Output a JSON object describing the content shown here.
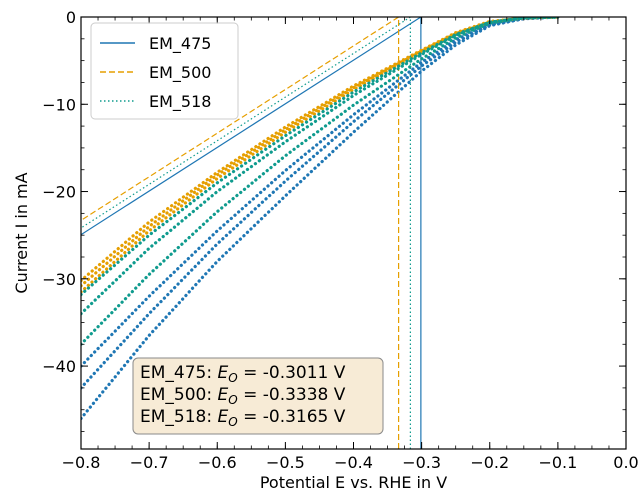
{
  "chart_data": {
    "type": "line",
    "title": "",
    "xlabel": "Potential E vs. RHE in V",
    "ylabel": "Current I in mA",
    "xlim": [
      -0.8,
      0.0
    ],
    "ylim": [
      -49.5,
      0
    ],
    "x_ticks": [
      -0.8,
      -0.7,
      -0.6,
      -0.5,
      -0.4,
      -0.3,
      -0.2,
      -0.1,
      0.0
    ],
    "x_tick_labels": [
      "−0.8",
      "−0.7",
      "−0.6",
      "−0.5",
      "−0.4",
      "−0.3",
      "−0.2",
      "−0.1",
      "0.0"
    ],
    "y_ticks": [
      0,
      -10,
      -20,
      -30,
      -40
    ],
    "y_tick_labels": [
      "0",
      "−10",
      "−20",
      "−30",
      "−40"
    ],
    "grid": false,
    "legend_position": "top-left",
    "series": [
      {
        "name": "EM_475",
        "color": "#1f77b4",
        "line_style": "solid",
        "onset_potential": -0.3011,
        "scans": [
          {
            "x": [
              -0.8,
              -0.7,
              -0.6,
              -0.5,
              -0.4,
              -0.3,
              -0.25,
              -0.2,
              -0.15,
              -0.1
            ],
            "y": [
              -46.0,
              -36.5,
              -28.0,
              -20.5,
              -13.2,
              -6.2,
              -3.2,
              -1.0,
              -0.2,
              0.0
            ]
          },
          {
            "x": [
              -0.8,
              -0.7,
              -0.6,
              -0.5,
              -0.4,
              -0.3,
              -0.25,
              -0.2,
              -0.15,
              -0.1
            ],
            "y": [
              -42.5,
              -34.0,
              -26.0,
              -18.8,
              -12.0,
              -5.6,
              -2.9,
              -0.9,
              -0.2,
              0.0
            ]
          },
          {
            "x": [
              -0.8,
              -0.7,
              -0.6,
              -0.5,
              -0.4,
              -0.3,
              -0.25,
              -0.2,
              -0.15,
              -0.1
            ],
            "y": [
              -40.0,
              -32.0,
              -24.5,
              -17.6,
              -11.2,
              -5.2,
              -2.6,
              -0.8,
              -0.1,
              0.0
            ]
          }
        ]
      },
      {
        "name": "EM_500",
        "color": "#e69f00",
        "line_style": "dashed",
        "onset_potential": -0.3338,
        "scans": [
          {
            "x": [
              -0.8,
              -0.7,
              -0.6,
              -0.5,
              -0.4,
              -0.3,
              -0.25,
              -0.2,
              -0.15,
              -0.1
            ],
            "y": [
              -31.5,
              -24.5,
              -18.5,
              -13.2,
              -8.3,
              -4.0,
              -2.0,
              -0.6,
              -0.1,
              0.0
            ]
          },
          {
            "x": [
              -0.8,
              -0.7,
              -0.6,
              -0.5,
              -0.4,
              -0.3,
              -0.25,
              -0.2,
              -0.15,
              -0.1
            ],
            "y": [
              -30.8,
              -24.0,
              -18.1,
              -12.9,
              -8.1,
              -3.9,
              -1.9,
              -0.6,
              -0.1,
              0.0
            ]
          },
          {
            "x": [
              -0.8,
              -0.7,
              -0.6,
              -0.5,
              -0.4,
              -0.3,
              -0.25,
              -0.2,
              -0.15,
              -0.1
            ],
            "y": [
              -30.2,
              -23.5,
              -17.8,
              -12.6,
              -7.9,
              -3.8,
              -1.8,
              -0.5,
              -0.1,
              0.0
            ]
          }
        ]
      },
      {
        "name": "EM_518",
        "color": "#0f9b8e",
        "line_style": "dotted",
        "onset_potential": -0.3165,
        "scans": [
          {
            "x": [
              -0.8,
              -0.7,
              -0.6,
              -0.5,
              -0.4,
              -0.3,
              -0.25,
              -0.2,
              -0.15,
              -0.1
            ],
            "y": [
              -37.5,
              -29.5,
              -22.3,
              -15.9,
              -10.1,
              -4.8,
              -2.4,
              -0.7,
              -0.1,
              0.0
            ]
          },
          {
            "x": [
              -0.8,
              -0.7,
              -0.6,
              -0.5,
              -0.4,
              -0.3,
              -0.25,
              -0.2,
              -0.15,
              -0.1
            ],
            "y": [
              -34.0,
              -26.5,
              -20.0,
              -14.3,
              -9.0,
              -4.3,
              -2.1,
              -0.6,
              -0.1,
              0.0
            ]
          },
          {
            "x": [
              -0.8,
              -0.7,
              -0.6,
              -0.5,
              -0.4,
              -0.3,
              -0.25,
              -0.2,
              -0.15,
              -0.1
            ],
            "y": [
              -31.8,
              -25.0,
              -19.0,
              -13.6,
              -8.6,
              -4.1,
              -2.0,
              -0.6,
              -0.1,
              0.0
            ]
          }
        ]
      }
    ],
    "annotation": {
      "lines": [
        {
          "label": "EM_475: ",
          "symbol": "E",
          "subscript": "O",
          "value": " = -0.3011 V"
        },
        {
          "label": "EM_500: ",
          "symbol": "E",
          "subscript": "O",
          "value": " = -0.3338 V"
        },
        {
          "label": "EM_518: ",
          "symbol": "E",
          "subscript": "O",
          "value": " = -0.3165 V"
        }
      ],
      "box_color": "#f7ebd6",
      "position": "bottom-left"
    }
  }
}
